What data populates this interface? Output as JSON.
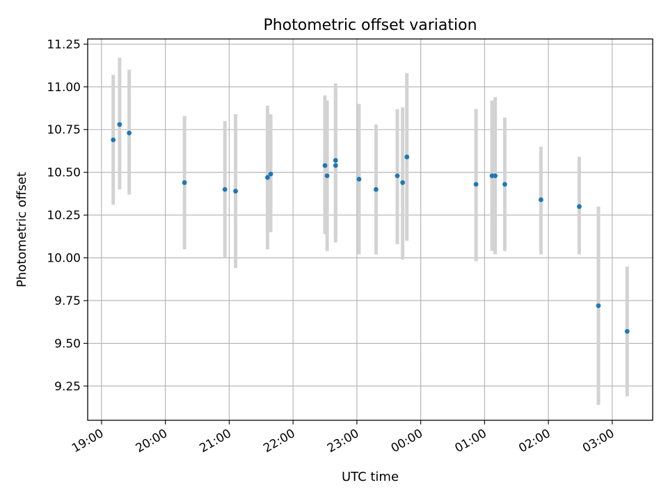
{
  "chart_data": {
    "type": "scatter",
    "title": "Photometric offset variation",
    "xlabel": "UTC time",
    "ylabel": "Photometric offset",
    "x_unit": "minutes after 19:00 UTC",
    "xlim": [
      -13,
      518
    ],
    "ylim": [
      9.05,
      11.28
    ],
    "grid": true,
    "x_ticks": [
      {
        "label": "19:00",
        "value": 0
      },
      {
        "label": "20:00",
        "value": 60
      },
      {
        "label": "21:00",
        "value": 120
      },
      {
        "label": "22:00",
        "value": 180
      },
      {
        "label": "23:00",
        "value": 240
      },
      {
        "label": "00:00",
        "value": 300
      },
      {
        "label": "01:00",
        "value": 360
      },
      {
        "label": "02:00",
        "value": 420
      },
      {
        "label": "03:00",
        "value": 480
      }
    ],
    "y_ticks": [
      {
        "label": "9.25",
        "value": 9.25
      },
      {
        "label": "9.50",
        "value": 9.5
      },
      {
        "label": "9.75",
        "value": 9.75
      },
      {
        "label": "10.00",
        "value": 10.0
      },
      {
        "label": "10.25",
        "value": 10.25
      },
      {
        "label": "10.50",
        "value": 10.5
      },
      {
        "label": "10.75",
        "value": 10.75
      },
      {
        "label": "11.00",
        "value": 11.0
      },
      {
        "label": "11.25",
        "value": 11.25
      }
    ],
    "series": [
      {
        "marker_color": "#1f77b4",
        "errorbar_color": "#d3d3d3",
        "points": [
          {
            "x": 11,
            "y": 10.69,
            "lo": 10.31,
            "hi": 11.07
          },
          {
            "x": 17,
            "y": 10.78,
            "lo": 10.4,
            "hi": 11.17
          },
          {
            "x": 26,
            "y": 10.73,
            "lo": 10.37,
            "hi": 11.1
          },
          {
            "x": 78,
            "y": 10.44,
            "lo": 10.05,
            "hi": 10.83
          },
          {
            "x": 116,
            "y": 10.4,
            "lo": 10.0,
            "hi": 10.8
          },
          {
            "x": 126,
            "y": 10.39,
            "lo": 9.94,
            "hi": 10.84
          },
          {
            "x": 156,
            "y": 10.47,
            "lo": 10.05,
            "hi": 10.89
          },
          {
            "x": 159,
            "y": 10.49,
            "lo": 10.15,
            "hi": 10.84
          },
          {
            "x": 210,
            "y": 10.54,
            "lo": 10.14,
            "hi": 10.95
          },
          {
            "x": 212,
            "y": 10.48,
            "lo": 10.04,
            "hi": 10.92
          },
          {
            "x": 220,
            "y": 10.57,
            "lo": 10.13,
            "hi": 11.02
          },
          {
            "x": 220,
            "y": 10.54,
            "lo": 10.09,
            "hi": 10.97
          },
          {
            "x": 242,
            "y": 10.46,
            "lo": 10.02,
            "hi": 10.9
          },
          {
            "x": 258,
            "y": 10.4,
            "lo": 10.02,
            "hi": 10.78
          },
          {
            "x": 278,
            "y": 10.48,
            "lo": 10.08,
            "hi": 10.87
          },
          {
            "x": 283,
            "y": 10.44,
            "lo": 9.99,
            "hi": 10.88
          },
          {
            "x": 287,
            "y": 10.59,
            "lo": 10.1,
            "hi": 11.08
          },
          {
            "x": 352,
            "y": 10.43,
            "lo": 9.98,
            "hi": 10.87
          },
          {
            "x": 367,
            "y": 10.48,
            "lo": 10.04,
            "hi": 10.92
          },
          {
            "x": 370,
            "y": 10.48,
            "lo": 10.02,
            "hi": 10.94
          },
          {
            "x": 379,
            "y": 10.43,
            "lo": 10.04,
            "hi": 10.82
          },
          {
            "x": 413,
            "y": 10.34,
            "lo": 10.02,
            "hi": 10.65
          },
          {
            "x": 449,
            "y": 10.3,
            "lo": 10.02,
            "hi": 10.59
          },
          {
            "x": 467,
            "y": 9.72,
            "lo": 9.14,
            "hi": 10.3
          },
          {
            "x": 494,
            "y": 9.57,
            "lo": 9.19,
            "hi": 9.95
          }
        ]
      }
    ]
  }
}
